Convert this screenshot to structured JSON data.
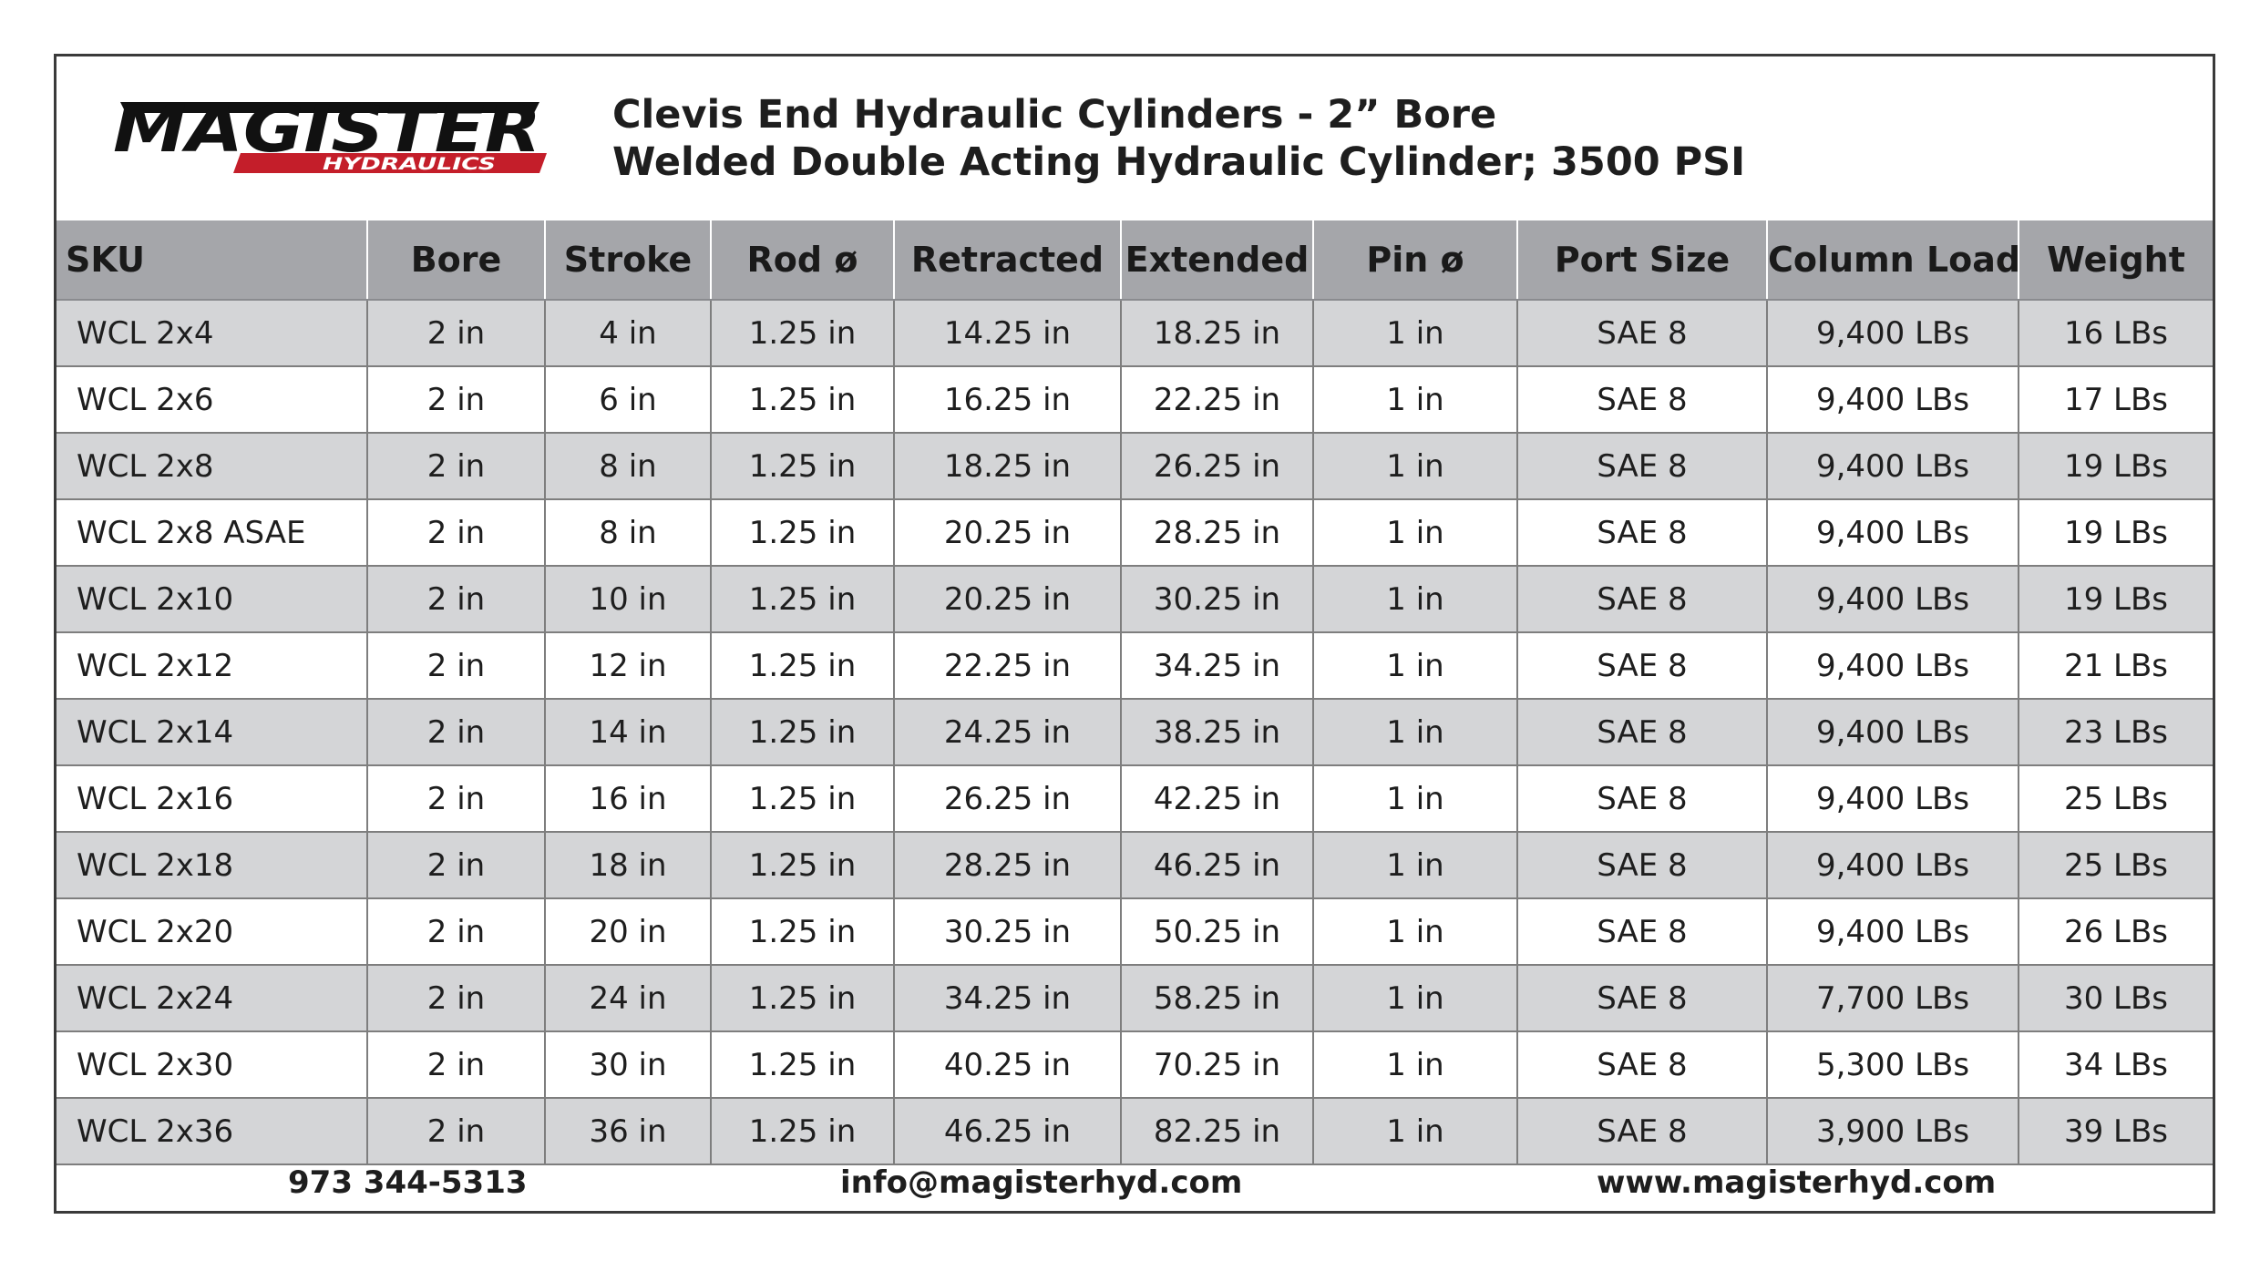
{
  "header": {
    "logo_text": "MAGISTER",
    "logo_subtext": "HYDRAULICS",
    "title_line1": "Clevis End Hydraulic Cylinders - 2” Bore",
    "title_line2": "Welded Double Acting Hydraulic Cylinder; 3500 PSI"
  },
  "colors": {
    "brand_red": "#c41e2a",
    "brand_black": "#111111",
    "header_gray": "#a5a6aa",
    "row_alt": "#d4d5d7"
  },
  "table": {
    "columns": [
      "SKU",
      "Bore",
      "Stroke",
      "Rod ø",
      "Retracted",
      "Extended",
      "Pin ø",
      "Port Size",
      "Column Load",
      "Weight"
    ],
    "rows": [
      [
        "WCL 2x4",
        "2 in",
        "4 in",
        "1.25 in",
        "14.25 in",
        "18.25 in",
        "1 in",
        "SAE 8",
        "9,400 LBs",
        "16 LBs"
      ],
      [
        "WCL 2x6",
        "2 in",
        "6 in",
        "1.25 in",
        "16.25 in",
        "22.25 in",
        "1 in",
        "SAE 8",
        "9,400 LBs",
        "17 LBs"
      ],
      [
        "WCL 2x8",
        "2 in",
        "8 in",
        "1.25 in",
        "18.25 in",
        "26.25 in",
        "1 in",
        "SAE 8",
        "9,400 LBs",
        "19 LBs"
      ],
      [
        "WCL 2x8 ASAE",
        "2 in",
        "8 in",
        "1.25 in",
        "20.25 in",
        "28.25 in",
        "1 in",
        "SAE 8",
        "9,400 LBs",
        "19 LBs"
      ],
      [
        "WCL 2x10",
        "2 in",
        "10 in",
        "1.25 in",
        "20.25 in",
        "30.25 in",
        "1 in",
        "SAE 8",
        "9,400 LBs",
        "19 LBs"
      ],
      [
        "WCL 2x12",
        "2 in",
        "12 in",
        "1.25 in",
        "22.25 in",
        "34.25 in",
        "1 in",
        "SAE 8",
        "9,400 LBs",
        "21 LBs"
      ],
      [
        "WCL 2x14",
        "2 in",
        "14 in",
        "1.25 in",
        "24.25 in",
        "38.25 in",
        "1 in",
        "SAE 8",
        "9,400 LBs",
        "23 LBs"
      ],
      [
        "WCL 2x16",
        "2 in",
        "16 in",
        "1.25 in",
        "26.25 in",
        "42.25 in",
        "1 in",
        "SAE 8",
        "9,400 LBs",
        "25 LBs"
      ],
      [
        "WCL 2x18",
        "2 in",
        "18 in",
        "1.25 in",
        "28.25 in",
        "46.25 in",
        "1 in",
        "SAE 8",
        "9,400 LBs",
        "25 LBs"
      ],
      [
        "WCL 2x20",
        "2 in",
        "20 in",
        "1.25 in",
        "30.25 in",
        "50.25 in",
        "1 in",
        "SAE 8",
        "9,400 LBs",
        "26 LBs"
      ],
      [
        "WCL 2x24",
        "2 in",
        "24 in",
        "1.25 in",
        "34.25 in",
        "58.25 in",
        "1 in",
        "SAE 8",
        "7,700 LBs",
        "30 LBs"
      ],
      [
        "WCL 2x30",
        "2 in",
        "30 in",
        "1.25 in",
        "40.25 in",
        "70.25 in",
        "1 in",
        "SAE 8",
        "5,300 LBs",
        "34 LBs"
      ],
      [
        "WCL 2x36",
        "2 in",
        "36 in",
        "1.25 in",
        "46.25 in",
        "82.25 in",
        "1 in",
        "SAE 8",
        "3,900 LBs",
        "39 LBs"
      ]
    ]
  },
  "footer": {
    "phone": "973 344-5313",
    "email": "info@magisterhyd.com",
    "website": "www.magisterhyd.com"
  }
}
